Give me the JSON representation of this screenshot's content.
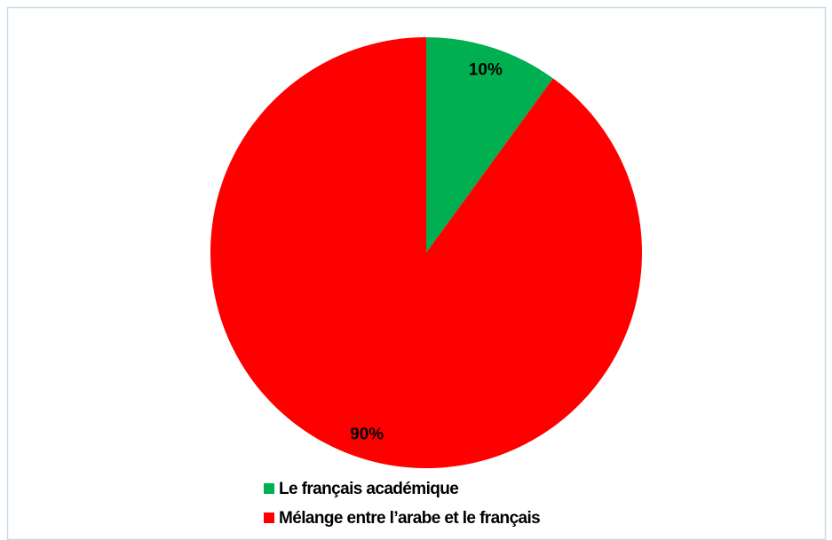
{
  "chart_data": {
    "type": "pie",
    "categories": [
      "Le français académique",
      "Mélange entre l’arabe et le français"
    ],
    "values": [
      10,
      90
    ],
    "value_labels": [
      "10%",
      "90%"
    ],
    "colors": [
      "#00b050",
      "#ff0000"
    ],
    "legend": "bottom"
  }
}
